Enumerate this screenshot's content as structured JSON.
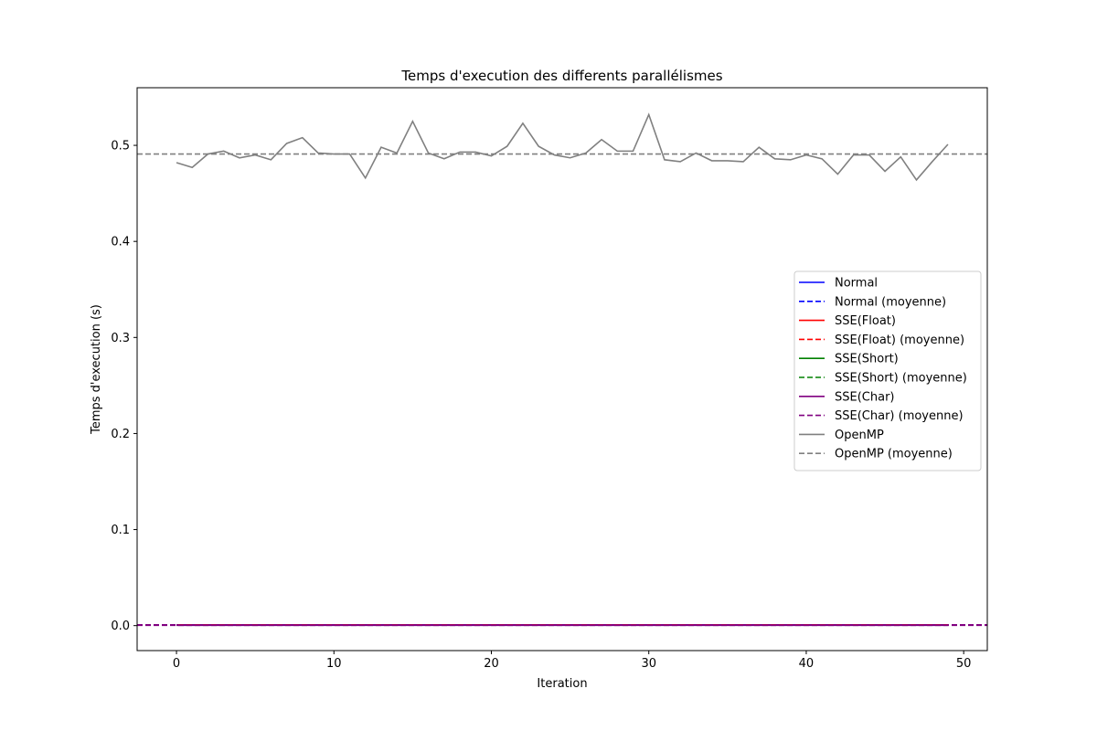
{
  "chart_data": {
    "type": "line",
    "title": "Temps d'execution des differents parallélismes",
    "xlabel": "Iteration",
    "ylabel": "Temps d'execution (s)",
    "xlim": [
      -2.5,
      51.5
    ],
    "ylim": [
      -0.026,
      0.56
    ],
    "xticks": [
      0,
      10,
      20,
      30,
      40,
      50
    ],
    "yticks": [
      0.0,
      0.1,
      0.2,
      0.3,
      0.4,
      0.5
    ],
    "xtick_labels": [
      "0",
      "10",
      "20",
      "30",
      "40",
      "50"
    ],
    "ytick_labels": [
      "0.0",
      "0.1",
      "0.2",
      "0.3",
      "0.4",
      "0.5"
    ],
    "grid": false,
    "legend_position": "center-right",
    "x": [
      0,
      1,
      2,
      3,
      4,
      5,
      6,
      7,
      8,
      9,
      10,
      11,
      12,
      13,
      14,
      15,
      16,
      17,
      18,
      19,
      20,
      21,
      22,
      23,
      24,
      25,
      26,
      27,
      28,
      29,
      30,
      31,
      32,
      33,
      34,
      35,
      36,
      37,
      38,
      39,
      40,
      41,
      42,
      43,
      44,
      45,
      46,
      47,
      48,
      49
    ],
    "series": [
      {
        "name": "Normal",
        "style": "solid",
        "color": "#0000ff",
        "values": [
          0.0008,
          0.0008,
          0.0008,
          0.0008,
          0.0008,
          0.0008,
          0.0008,
          0.0008,
          0.0008,
          0.0008,
          0.0008,
          0.0008,
          0.0008,
          0.0008,
          0.0008,
          0.0008,
          0.0008,
          0.0008,
          0.0008,
          0.0008,
          0.0008,
          0.0008,
          0.0008,
          0.0008,
          0.0008,
          0.0008,
          0.0008,
          0.0008,
          0.0008,
          0.0008,
          0.0008,
          0.0008,
          0.0008,
          0.0008,
          0.0008,
          0.0008,
          0.0008,
          0.0008,
          0.0008,
          0.0008,
          0.0008,
          0.0008,
          0.0008,
          0.0008,
          0.0008,
          0.0008,
          0.0008,
          0.0008,
          0.0008,
          0.0008
        ]
      },
      {
        "name": "Normal (moyenne)",
        "style": "dashed",
        "color": "#0000ff",
        "mean": 0.0008
      },
      {
        "name": "SSE(Float)",
        "style": "solid",
        "color": "#ff0000",
        "values": [
          0.0006,
          0.0006,
          0.0006,
          0.0006,
          0.0006,
          0.0006,
          0.0006,
          0.0006,
          0.0006,
          0.0006,
          0.0006,
          0.0006,
          0.0006,
          0.0006,
          0.0006,
          0.0006,
          0.0006,
          0.0006,
          0.0006,
          0.0006,
          0.0006,
          0.0006,
          0.0006,
          0.0006,
          0.0006,
          0.0006,
          0.0006,
          0.0006,
          0.0006,
          0.0006,
          0.0006,
          0.0006,
          0.0006,
          0.0006,
          0.0006,
          0.0006,
          0.0006,
          0.0006,
          0.0006,
          0.0006,
          0.0006,
          0.0006,
          0.0006,
          0.0006,
          0.0006,
          0.0006,
          0.0006,
          0.0006,
          0.0006,
          0.0006
        ]
      },
      {
        "name": "SSE(Float) (moyenne)",
        "style": "dashed",
        "color": "#ff0000",
        "mean": 0.0006
      },
      {
        "name": "SSE(Short)",
        "style": "solid",
        "color": "#008000",
        "values": [
          0.0004,
          0.0004,
          0.0004,
          0.0004,
          0.0004,
          0.0004,
          0.0004,
          0.0004,
          0.0004,
          0.0004,
          0.0004,
          0.0004,
          0.0004,
          0.0004,
          0.0004,
          0.0004,
          0.0004,
          0.0004,
          0.0004,
          0.0004,
          0.0004,
          0.0004,
          0.0004,
          0.0004,
          0.0004,
          0.0004,
          0.0004,
          0.0004,
          0.0004,
          0.0004,
          0.0004,
          0.0004,
          0.0004,
          0.0004,
          0.0004,
          0.0004,
          0.0004,
          0.0004,
          0.0004,
          0.0004,
          0.0004,
          0.0004,
          0.0004,
          0.0004,
          0.0004,
          0.0004,
          0.0004,
          0.0004,
          0.0004,
          0.0004
        ]
      },
      {
        "name": "SSE(Short) (moyenne)",
        "style": "dashed",
        "color": "#008000",
        "mean": 0.0004
      },
      {
        "name": "SSE(Char)",
        "style": "solid",
        "color": "#800080",
        "values": [
          0.0003,
          0.0003,
          0.0003,
          0.0003,
          0.0003,
          0.0003,
          0.0003,
          0.0003,
          0.0003,
          0.0003,
          0.0003,
          0.0003,
          0.0003,
          0.0003,
          0.0003,
          0.0003,
          0.0003,
          0.0003,
          0.0003,
          0.0003,
          0.0003,
          0.0003,
          0.0003,
          0.0003,
          0.0003,
          0.0003,
          0.0003,
          0.0003,
          0.0003,
          0.0003,
          0.0003,
          0.0003,
          0.0003,
          0.0003,
          0.0003,
          0.0003,
          0.0003,
          0.0003,
          0.0003,
          0.0003,
          0.0003,
          0.0003,
          0.0003,
          0.0003,
          0.0003,
          0.0003,
          0.0003,
          0.0003,
          0.0003,
          0.0003
        ]
      },
      {
        "name": "SSE(Char) (moyenne)",
        "style": "dashed",
        "color": "#800080",
        "mean": 0.0003
      },
      {
        "name": "OpenMP",
        "style": "solid",
        "color": "#808080",
        "values": [
          0.482,
          0.477,
          0.491,
          0.494,
          0.487,
          0.49,
          0.485,
          0.502,
          0.508,
          0.492,
          0.491,
          0.491,
          0.466,
          0.498,
          0.492,
          0.525,
          0.492,
          0.486,
          0.493,
          0.493,
          0.489,
          0.499,
          0.523,
          0.499,
          0.49,
          0.487,
          0.492,
          0.506,
          0.494,
          0.494,
          0.532,
          0.485,
          0.483,
          0.492,
          0.484,
          0.484,
          0.483,
          0.498,
          0.486,
          0.485,
          0.49,
          0.486,
          0.47,
          0.49,
          0.49,
          0.473,
          0.488,
          0.464,
          0.483,
          0.501
        ]
      },
      {
        "name": "OpenMP (moyenne)",
        "style": "dashed",
        "color": "#808080",
        "mean": 0.491
      }
    ]
  }
}
